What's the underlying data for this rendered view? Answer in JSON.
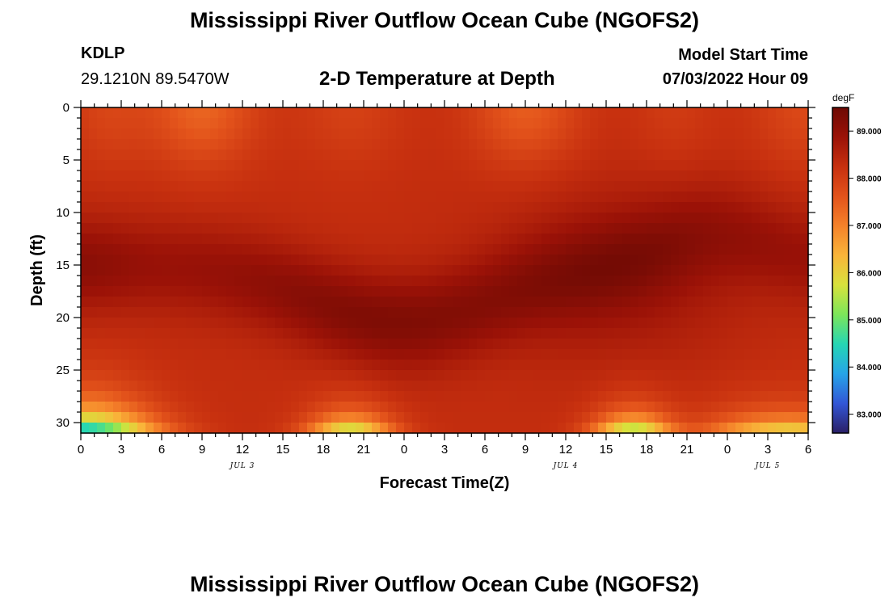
{
  "header": {
    "title_top": "Mississippi River Outflow Ocean Cube (NGOFS2)",
    "title_bottom": "Mississippi River Outflow Ocean Cube (NGOFS2)",
    "station": "KDLP",
    "coords": "29.1210N  89.5470W",
    "subtitle": "2-D Temperature at Depth",
    "model_start_label": "Model Start Time",
    "model_start_value": "07/03/2022 Hour 09"
  },
  "chart_data": {
    "type": "heatmap",
    "title": "2-D Temperature at Depth",
    "xlabel": "Forecast Time(Z)",
    "ylabel": "Depth (ft)",
    "x_range_hours": [
      0,
      54
    ],
    "x_tick_labels": [
      "0",
      "3",
      "6",
      "9",
      "12",
      "15",
      "18",
      "21",
      "0",
      "3",
      "6",
      "9",
      "12",
      "15",
      "18",
      "21",
      "0",
      "3",
      "6"
    ],
    "date_labels": [
      {
        "text": "JUL 3",
        "hour": 12
      },
      {
        "text": "JUL 4",
        "hour": 36
      },
      {
        "text": "JUL 5",
        "hour": 51
      }
    ],
    "ylim": [
      0,
      31
    ],
    "y_inverted": true,
    "y_ticks": [
      0,
      5,
      10,
      15,
      20,
      25,
      30
    ],
    "colorbar": {
      "unit": "degF",
      "min": 82.6,
      "max": 89.5,
      "tick_values": [
        83,
        84,
        85,
        86,
        87,
        88,
        89
      ],
      "tick_labels": [
        "83.000",
        "84.000",
        "85.000",
        "86.000",
        "87.000",
        "88.000",
        "89.000"
      ],
      "colors": [
        "#2a1f66",
        "#3256d6",
        "#26a4e8",
        "#25d6b4",
        "#7ce65a",
        "#d8e23c",
        "#f9b53a",
        "#f5822a",
        "#e3531b",
        "#c7300f",
        "#9b1207",
        "#6e0a04"
      ]
    },
    "field_description": "Temperature (degF) vs forecast hour and depth; warm core 88.5-89.5 at mid-depth, surface ~86-87 near hours 9 and 33, bottom cold 82.6-85 near hours 0-6 and bumps near hours 20 and 41"
  }
}
